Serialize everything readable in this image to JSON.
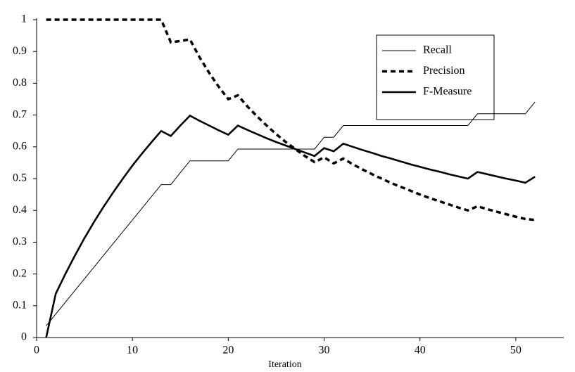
{
  "chart_data": {
    "type": "line",
    "x_label": "Iteration",
    "x": [
      1,
      2,
      3,
      4,
      5,
      6,
      7,
      8,
      9,
      10,
      11,
      12,
      13,
      14,
      15,
      16,
      17,
      18,
      19,
      20,
      21,
      22,
      23,
      24,
      25,
      26,
      27,
      28,
      29,
      30,
      31,
      32,
      33,
      34,
      35,
      36,
      37,
      38,
      39,
      40,
      41,
      42,
      43,
      44,
      45,
      46,
      47,
      48,
      49,
      50,
      51,
      52
    ],
    "series": [
      {
        "name": "Recall",
        "color": "#000000",
        "style": "thin",
        "values": [
          0.037,
          0.074,
          0.111,
          0.148,
          0.185,
          0.222,
          0.259,
          0.296,
          0.333,
          0.37,
          0.407,
          0.444,
          0.481,
          0.481,
          0.519,
          0.556,
          0.556,
          0.556,
          0.556,
          0.556,
          0.593,
          0.593,
          0.593,
          0.593,
          0.593,
          0.593,
          0.593,
          0.593,
          0.593,
          0.63,
          0.63,
          0.667,
          0.667,
          0.667,
          0.667,
          0.667,
          0.667,
          0.667,
          0.667,
          0.667,
          0.667,
          0.667,
          0.667,
          0.667,
          0.667,
          0.704,
          0.704,
          0.704,
          0.704,
          0.704,
          0.704,
          0.741
        ]
      },
      {
        "name": "Precision",
        "color": "#000000",
        "style": "dashed",
        "values": [
          1,
          1,
          1,
          1,
          1,
          1,
          1,
          1,
          1,
          1,
          1,
          1,
          1,
          0.929,
          0.933,
          0.938,
          0.882,
          0.833,
          0.789,
          0.75,
          0.762,
          0.727,
          0.696,
          0.667,
          0.64,
          0.615,
          0.593,
          0.571,
          0.552,
          0.567,
          0.548,
          0.563,
          0.545,
          0.529,
          0.514,
          0.5,
          0.486,
          0.474,
          0.462,
          0.45,
          0.439,
          0.429,
          0.419,
          0.409,
          0.4,
          0.413,
          0.404,
          0.396,
          0.388,
          0.38,
          0.373,
          0.37
        ]
      },
      {
        "name": "F-Measure",
        "color": "#000000",
        "style": "thick",
        "values": [
          0,
          0.138,
          0.2,
          0.258,
          0.313,
          0.364,
          0.412,
          0.457,
          0.5,
          0.541,
          0.579,
          0.615,
          0.65,
          0.634,
          0.667,
          0.698,
          0.682,
          0.667,
          0.652,
          0.638,
          0.667,
          0.653,
          0.64,
          0.627,
          0.615,
          0.604,
          0.593,
          0.582,
          0.571,
          0.596,
          0.586,
          0.61,
          0.6,
          0.59,
          0.581,
          0.571,
          0.563,
          0.554,
          0.545,
          0.537,
          0.529,
          0.522,
          0.514,
          0.507,
          0.5,
          0.521,
          0.514,
          0.507,
          0.5,
          0.494,
          0.487,
          0.506
        ]
      }
    ],
    "xlim": [
      0,
      55
    ],
    "xticks": [
      0,
      10,
      20,
      30,
      40,
      50
    ],
    "ylim": [
      0,
      1
    ],
    "yticks": [
      0,
      0.1,
      0.2,
      0.3,
      0.4,
      0.5,
      0.6,
      0.7,
      0.8,
      0.9,
      1
    ],
    "grid": false,
    "legend": "upper right"
  }
}
